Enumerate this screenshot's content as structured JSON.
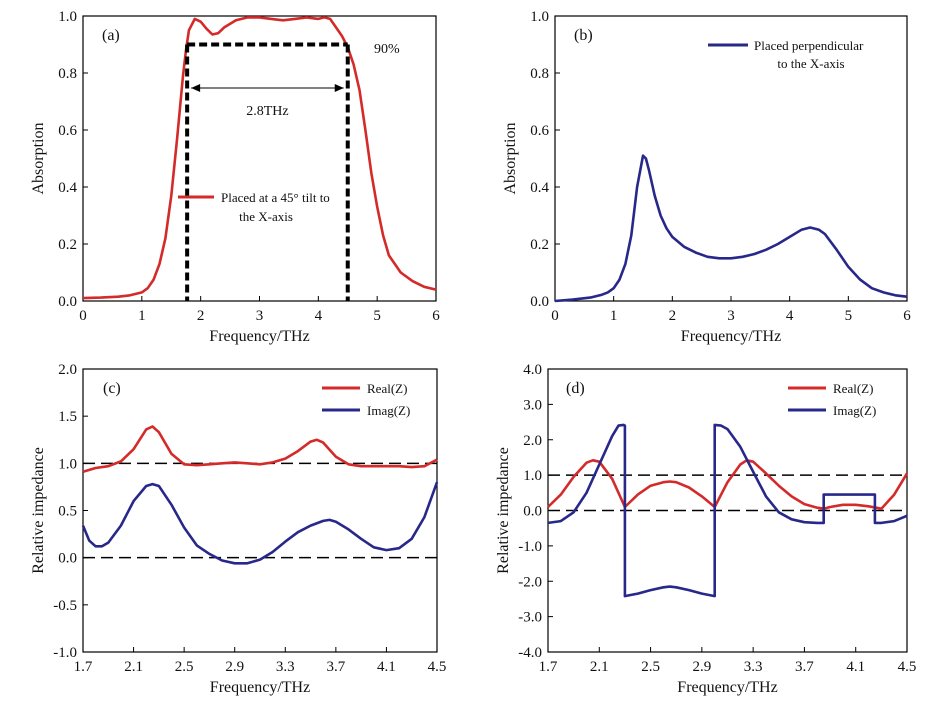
{
  "chart_data": [
    {
      "panel_label": "(a)",
      "type": "line",
      "xlabel": "Frequency/THz",
      "ylabel": "Absorption",
      "xlim": [
        0,
        6
      ],
      "ylim": [
        0,
        1.0
      ],
      "xticks": [
        0,
        1,
        2,
        3,
        4,
        5,
        6
      ],
      "xtick_labels": [
        "0",
        "1",
        "2",
        "3",
        "4",
        "5",
        "6"
      ],
      "yticks": [
        0,
        0.2,
        0.4,
        0.6,
        0.8,
        1.0
      ],
      "ytick_labels": [
        "0.0",
        "0.2",
        "0.4",
        "0.6",
        "0.8",
        "1.0"
      ],
      "legend": {
        "placement": "center",
        "entries": [
          "Placed at a 45° tilt to",
          "the X-axis"
        ]
      },
      "annotations": [
        "90%",
        "2.8THz"
      ],
      "band": {
        "x_start": 1.77,
        "x_end": 4.5,
        "level": 0.9
      },
      "series": [
        {
          "name": "Placed at a 45° tilt to the X-axis",
          "color": "#d42a2a",
          "x": [
            0,
            0.3,
            0.6,
            0.8,
            1.0,
            1.1,
            1.2,
            1.3,
            1.4,
            1.5,
            1.6,
            1.7,
            1.75,
            1.8,
            1.9,
            2.0,
            2.1,
            2.2,
            2.3,
            2.4,
            2.6,
            2.8,
            3.0,
            3.2,
            3.4,
            3.6,
            3.8,
            4.0,
            4.1,
            4.2,
            4.3,
            4.4,
            4.5,
            4.6,
            4.7,
            4.8,
            4.9,
            5.0,
            5.1,
            5.2,
            5.4,
            5.6,
            5.8,
            6.0
          ],
          "y": [
            0.01,
            0.012,
            0.015,
            0.02,
            0.03,
            0.045,
            0.075,
            0.13,
            0.22,
            0.37,
            0.57,
            0.79,
            0.88,
            0.95,
            0.99,
            0.98,
            0.955,
            0.935,
            0.94,
            0.96,
            0.985,
            0.995,
            0.995,
            0.99,
            0.985,
            0.99,
            0.995,
            0.99,
            0.995,
            0.99,
            0.96,
            0.93,
            0.89,
            0.83,
            0.74,
            0.6,
            0.45,
            0.33,
            0.23,
            0.16,
            0.1,
            0.07,
            0.05,
            0.04
          ]
        }
      ]
    },
    {
      "panel_label": "(b)",
      "type": "line",
      "xlabel": "Frequency/THz",
      "ylabel": "Absorption",
      "xlim": [
        0,
        6
      ],
      "ylim": [
        0,
        1.0
      ],
      "xticks": [
        0,
        1,
        2,
        3,
        4,
        5,
        6
      ],
      "xtick_labels": [
        "0",
        "1",
        "2",
        "3",
        "4",
        "5",
        "6"
      ],
      "yticks": [
        0,
        0.2,
        0.4,
        0.6,
        0.8,
        1.0
      ],
      "ytick_labels": [
        "0.0",
        "0.2",
        "0.4",
        "0.6",
        "0.8",
        "1.0"
      ],
      "legend": {
        "placement": "top-right",
        "entries": [
          "Placed perpendicular",
          "to the X-axis"
        ]
      },
      "series": [
        {
          "name": "Placed perpendicular to the X-axis",
          "color": "#27288a",
          "x": [
            0,
            0.3,
            0.6,
            0.8,
            0.9,
            1.0,
            1.1,
            1.2,
            1.3,
            1.4,
            1.5,
            1.55,
            1.6,
            1.7,
            1.8,
            1.9,
            2.0,
            2.2,
            2.4,
            2.6,
            2.8,
            3.0,
            3.2,
            3.4,
            3.6,
            3.8,
            4.0,
            4.2,
            4.35,
            4.5,
            4.6,
            4.8,
            5.0,
            5.2,
            5.4,
            5.6,
            5.8,
            6.0
          ],
          "y": [
            0.0,
            0.005,
            0.012,
            0.022,
            0.03,
            0.045,
            0.075,
            0.13,
            0.23,
            0.4,
            0.51,
            0.5,
            0.46,
            0.37,
            0.3,
            0.255,
            0.225,
            0.19,
            0.17,
            0.155,
            0.15,
            0.15,
            0.155,
            0.165,
            0.18,
            0.2,
            0.225,
            0.25,
            0.258,
            0.25,
            0.235,
            0.18,
            0.12,
            0.075,
            0.045,
            0.03,
            0.02,
            0.015
          ]
        }
      ]
    },
    {
      "panel_label": "(c)",
      "type": "line",
      "xlabel": "Frequency/THz",
      "ylabel": "Relative impedance",
      "xlim": [
        1.7,
        4.5
      ],
      "ylim": [
        -1.0,
        2.0
      ],
      "xticks": [
        1.7,
        2.1,
        2.5,
        2.9,
        3.3,
        3.7,
        4.1,
        4.5
      ],
      "xtick_labels": [
        "1.7",
        "2.1",
        "2.5",
        "2.9",
        "3.3",
        "3.7",
        "4.1",
        "4.5"
      ],
      "yticks": [
        -1.0,
        -0.5,
        0.0,
        0.5,
        1.0,
        1.5,
        2.0
      ],
      "ytick_labels": [
        "-1.0",
        "-0.5",
        "0.0",
        "0.5",
        "1.0",
        "1.5",
        "2.0"
      ],
      "reference_lines": [
        1.0,
        0.0
      ],
      "legend": {
        "placement": "top-right",
        "entries": [
          "Real(Z)",
          "Imag(Z)"
        ]
      },
      "series": [
        {
          "name": "Real(Z)",
          "color": "#d42a2a",
          "x": [
            1.7,
            1.8,
            1.9,
            2.0,
            2.1,
            2.2,
            2.25,
            2.3,
            2.4,
            2.5,
            2.6,
            2.7,
            2.8,
            2.9,
            3.0,
            3.1,
            3.2,
            3.3,
            3.4,
            3.5,
            3.55,
            3.6,
            3.7,
            3.8,
            3.9,
            4.0,
            4.1,
            4.2,
            4.3,
            4.4,
            4.5
          ],
          "y": [
            0.91,
            0.95,
            0.97,
            1.02,
            1.15,
            1.36,
            1.39,
            1.33,
            1.1,
            0.99,
            0.98,
            0.99,
            1.0,
            1.01,
            1.0,
            0.99,
            1.01,
            1.05,
            1.13,
            1.23,
            1.25,
            1.22,
            1.07,
            0.99,
            0.97,
            0.97,
            0.97,
            0.97,
            0.96,
            0.97,
            1.04
          ]
        },
        {
          "name": "Imag(Z)",
          "color": "#27288a",
          "x": [
            1.7,
            1.75,
            1.8,
            1.85,
            1.9,
            2.0,
            2.1,
            2.2,
            2.25,
            2.3,
            2.4,
            2.5,
            2.6,
            2.7,
            2.8,
            2.9,
            3.0,
            3.1,
            3.2,
            3.3,
            3.4,
            3.5,
            3.6,
            3.65,
            3.7,
            3.8,
            3.9,
            4.0,
            4.1,
            4.2,
            4.3,
            4.4,
            4.5
          ],
          "y": [
            0.34,
            0.18,
            0.12,
            0.12,
            0.16,
            0.34,
            0.6,
            0.76,
            0.78,
            0.76,
            0.56,
            0.32,
            0.13,
            0.04,
            -0.03,
            -0.06,
            -0.06,
            -0.02,
            0.06,
            0.17,
            0.27,
            0.34,
            0.39,
            0.4,
            0.38,
            0.3,
            0.2,
            0.11,
            0.08,
            0.1,
            0.2,
            0.43,
            0.8
          ]
        }
      ]
    },
    {
      "panel_label": "(d)",
      "type": "line",
      "xlabel": "Frequency/THz",
      "ylabel": "Relative impedance",
      "xlim": [
        1.7,
        4.5
      ],
      "ylim": [
        -4.0,
        4.0
      ],
      "xticks": [
        1.7,
        2.1,
        2.5,
        2.9,
        3.3,
        3.7,
        4.1,
        4.5
      ],
      "xtick_labels": [
        "1.7",
        "2.1",
        "2.5",
        "2.9",
        "3.3",
        "3.7",
        "4.1",
        "4.5"
      ],
      "yticks": [
        -4.0,
        -3.0,
        -2.0,
        -1.0,
        0.0,
        1.0,
        2.0,
        3.0,
        4.0
      ],
      "ytick_labels": [
        "-4.0",
        "-3.0",
        "-2.0",
        "-1.0",
        "0.0",
        "1.0",
        "2.0",
        "3.0",
        "4.0"
      ],
      "reference_lines": [
        1.0,
        0.0
      ],
      "legend": {
        "placement": "top-right",
        "entries": [
          "Real(Z)",
          "Imag(Z)"
        ]
      },
      "series": [
        {
          "name": "Real(Z)",
          "color": "#d42a2a",
          "x": [
            1.7,
            1.8,
            1.9,
            2.0,
            2.05,
            2.1,
            2.2,
            2.3,
            2.4,
            2.5,
            2.6,
            2.65,
            2.7,
            2.8,
            2.9,
            3.0,
            3.1,
            3.2,
            3.25,
            3.3,
            3.4,
            3.5,
            3.6,
            3.7,
            3.8,
            3.85,
            3.9,
            4.0,
            4.1,
            4.2,
            4.3,
            4.4,
            4.5
          ],
          "y": [
            0.1,
            0.45,
            0.95,
            1.35,
            1.42,
            1.38,
            0.9,
            0.1,
            0.45,
            0.7,
            0.8,
            0.82,
            0.8,
            0.65,
            0.4,
            0.1,
            0.8,
            1.3,
            1.42,
            1.38,
            1.05,
            0.7,
            0.4,
            0.18,
            0.08,
            0.05,
            0.1,
            0.16,
            0.16,
            0.12,
            0.05,
            0.45,
            1.05
          ]
        },
        {
          "name": "Imag(Z)",
          "color": "#27288a",
          "x": [
            1.7,
            1.8,
            1.9,
            2.0,
            2.1,
            2.2,
            2.25,
            2.29,
            2.3,
            2.3,
            2.4,
            2.5,
            2.6,
            2.65,
            2.7,
            2.8,
            2.9,
            3.0,
            3.0,
            3.05,
            3.1,
            3.2,
            3.3,
            3.4,
            3.5,
            3.6,
            3.7,
            3.8,
            3.85,
            3.85,
            3.9,
            4.0,
            4.1,
            4.2,
            4.25,
            4.25,
            4.3,
            4.4,
            4.5
          ],
          "y": [
            -0.35,
            -0.3,
            -0.05,
            0.5,
            1.3,
            2.1,
            2.4,
            2.42,
            2.4,
            -2.42,
            -2.35,
            -2.25,
            -2.17,
            -2.15,
            -2.17,
            -2.25,
            -2.35,
            -2.42,
            2.42,
            2.4,
            2.3,
            1.8,
            1.1,
            0.4,
            -0.05,
            -0.25,
            -0.33,
            -0.35,
            -0.35,
            0.45,
            0.45,
            0.45,
            0.45,
            0.45,
            0.45,
            -0.35,
            -0.35,
            -0.3,
            -0.15
          ]
        }
      ]
    }
  ]
}
